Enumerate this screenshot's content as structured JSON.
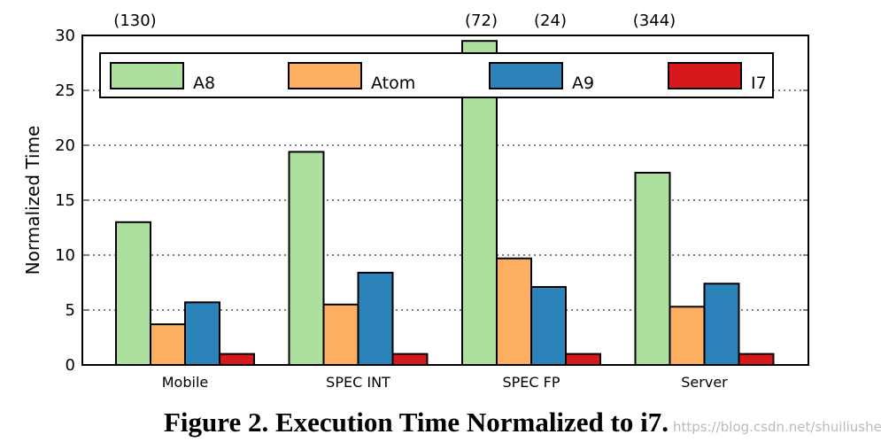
{
  "chart_data": {
    "type": "bar",
    "title": "Figure 2. Execution Time Normalized to i7.",
    "ylabel": "Normalized Time",
    "categories": [
      "Mobile",
      "SPEC INT",
      "SPEC FP",
      "Server"
    ],
    "series": [
      {
        "name": "A8",
        "color": "#addf9f",
        "values": [
          13.0,
          19.4,
          29.5,
          17.5
        ]
      },
      {
        "name": "Atom",
        "color": "#fdae61",
        "values": [
          3.7,
          5.5,
          9.7,
          5.3
        ]
      },
      {
        "name": "A9",
        "color": "#2b83ba",
        "values": [
          5.7,
          8.4,
          7.1,
          7.4
        ]
      },
      {
        "name": "I7",
        "color": "#d7191c",
        "values": [
          1.0,
          1.0,
          1.0,
          1.0
        ]
      }
    ],
    "annotations": [
      {
        "text": "(130)",
        "category": "Mobile",
        "series": "A8"
      },
      {
        "text": "(72)",
        "category": "SPEC FP",
        "series": "A8"
      },
      {
        "text": "(24)",
        "category": "SPEC FP",
        "series": "A9"
      },
      {
        "text": "(344)",
        "category": "Server",
        "series": "A8"
      }
    ],
    "ylim": [
      0,
      30
    ],
    "yticks": [
      0,
      5,
      10,
      15,
      20,
      25,
      30
    ],
    "grid": true,
    "legend": "top",
    "watermark": "https://blog.csdn.net/shuiliusheng"
  }
}
